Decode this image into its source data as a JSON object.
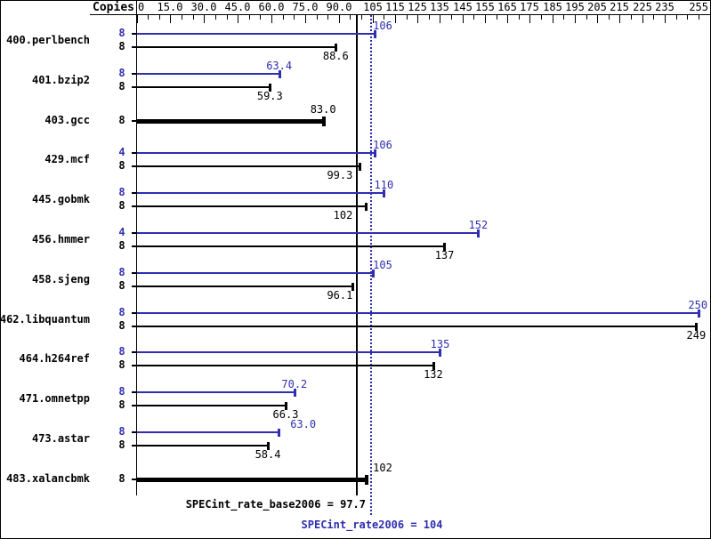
{
  "header": {
    "copies_label": "Copies"
  },
  "chart_data": {
    "type": "bar",
    "orientation": "horizontal",
    "x_axis": {
      "range": [
        0,
        255
      ],
      "minor_tick_step": 5,
      "tick_labels": [
        "0",
        "15.0",
        "30.0",
        "45.0",
        "60.0",
        "75.0",
        "90.0",
        "105",
        "115",
        "125",
        "135",
        "145",
        "155",
        "165",
        "175",
        "185",
        "195",
        "205",
        "215",
        "225",
        "235",
        "255"
      ],
      "tick_values": [
        0,
        15,
        30,
        45,
        60,
        75,
        90,
        105,
        115,
        125,
        135,
        145,
        155,
        165,
        175,
        185,
        195,
        205,
        215,
        225,
        235,
        255
      ]
    },
    "copies_column_label": "Copies",
    "benchmarks": [
      {
        "name": "400.perlbench",
        "peak": {
          "copies": "8",
          "value": 106,
          "label": "106"
        },
        "base": {
          "copies": "8",
          "value": 88.6,
          "label": "88.6"
        }
      },
      {
        "name": "401.bzip2",
        "peak": {
          "copies": "8",
          "value": 63.4,
          "label": "63.4"
        },
        "base": {
          "copies": "8",
          "value": 59.3,
          "label": "59.3"
        }
      },
      {
        "name": "403.gcc",
        "single": {
          "copies": "8",
          "value": 83.0,
          "label": "83.0"
        }
      },
      {
        "name": "429.mcf",
        "peak": {
          "copies": "4",
          "value": 106,
          "label": "106"
        },
        "base": {
          "copies": "8",
          "value": 99.3,
          "label": "99.3"
        }
      },
      {
        "name": "445.gobmk",
        "peak": {
          "copies": "8",
          "value": 110,
          "label": "110"
        },
        "base": {
          "copies": "8",
          "value": 102,
          "label": "102"
        }
      },
      {
        "name": "456.hmmer",
        "peak": {
          "copies": "4",
          "value": 152,
          "label": "152"
        },
        "base": {
          "copies": "8",
          "value": 137,
          "label": "137"
        }
      },
      {
        "name": "458.sjeng",
        "peak": {
          "copies": "8",
          "value": 105,
          "label": "105"
        },
        "base": {
          "copies": "8",
          "value": 96.1,
          "label": "96.1"
        }
      },
      {
        "name": "462.libquantum",
        "peak": {
          "copies": "8",
          "value": 250,
          "label": "250"
        },
        "base": {
          "copies": "8",
          "value": 249,
          "label": "249"
        }
      },
      {
        "name": "464.h264ref",
        "peak": {
          "copies": "8",
          "value": 135,
          "label": "135"
        },
        "base": {
          "copies": "8",
          "value": 132,
          "label": "132"
        }
      },
      {
        "name": "471.omnetpp",
        "peak": {
          "copies": "8",
          "value": 70.2,
          "label": "70.2"
        },
        "base": {
          "copies": "8",
          "value": 66.3,
          "label": "66.3"
        }
      },
      {
        "name": "473.astar",
        "peak": {
          "copies": "8",
          "value": 63.0,
          "label": "63.0"
        },
        "base": {
          "copies": "8",
          "value": 58.4,
          "label": "58.4"
        }
      },
      {
        "name": "483.xalancbmk",
        "single": {
          "copies": "8",
          "value": 102,
          "label": "102"
        }
      }
    ],
    "reference_lines": [
      {
        "name": "base_mean",
        "value": 97.7,
        "label": "SPECint_rate_base2006 = 97.7",
        "style": "solid",
        "color": "#000000"
      },
      {
        "name": "peak_mean",
        "value": 104,
        "label": "SPECint_rate2006 = 104",
        "style": "dotted",
        "color": "#2e2eb0"
      }
    ],
    "colors": {
      "peak": "#2e2eb0",
      "base": "#000000"
    }
  }
}
